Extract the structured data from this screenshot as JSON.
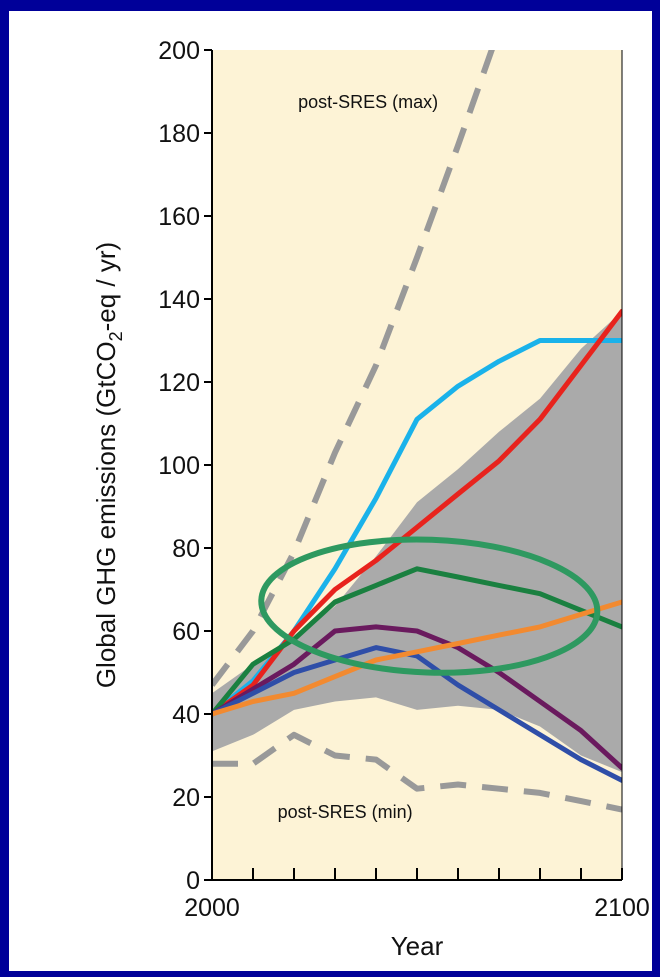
{
  "chart_data": {
    "type": "line",
    "xlabel": "Year",
    "ylabel": "Global GHG emissions (GtCO2-eq / yr)",
    "ylabel_parts": {
      "before": "Global GHG emissions (GtCO",
      "sub": "2",
      "after": "-eq / yr)"
    },
    "xlim": [
      2000,
      2100
    ],
    "ylim": [
      0,
      200
    ],
    "y_ticks": [
      0,
      20,
      40,
      60,
      80,
      100,
      120,
      140,
      160,
      180,
      200
    ],
    "y_tick_labels": [
      "0",
      "20",
      "40",
      "60",
      "80",
      "100",
      "120",
      "140",
      "160",
      "180",
      "200"
    ],
    "x_ticks": [
      2000,
      2010,
      2020,
      2030,
      2040,
      2050,
      2060,
      2070,
      2080,
      2090,
      2100
    ],
    "x_tick_labels": [
      {
        "x": 2000,
        "label": "2000"
      },
      {
        "x": 2100,
        "label": "2100"
      }
    ],
    "grid": false,
    "background_color": "#fdf3d6",
    "annotations": [
      {
        "text": "post-SRES (max)",
        "x": 2021,
        "y": 186
      },
      {
        "text": "post-SRES (min)",
        "x": 2016,
        "y": 15
      }
    ],
    "band": {
      "color": "#aaaaaa",
      "x": [
        2000,
        2010,
        2020,
        2030,
        2040,
        2050,
        2060,
        2070,
        2080,
        2090,
        2100
      ],
      "upper": [
        45,
        52,
        58,
        66,
        78,
        91,
        99,
        108,
        116,
        128,
        137
      ],
      "lower": [
        31,
        35,
        41,
        43,
        44,
        41,
        42,
        41,
        37,
        30,
        26
      ]
    },
    "reference_lines": [
      {
        "x": [
          2000,
          2010,
          2020,
          2030,
          2040,
          2050,
          2060,
          2070,
          2080,
          2090,
          2100
        ],
        "y": [
          47,
          60,
          79,
          103,
          124,
          150,
          177,
          205,
          234,
          262,
          290
        ],
        "color": "#999999",
        "style": "dashed"
      },
      {
        "x": [
          2000,
          2010,
          2020,
          2030,
          2040,
          2050,
          2060,
          2070,
          2080,
          2090,
          2100
        ],
        "y": [
          28,
          28,
          35,
          30,
          29,
          22,
          23,
          22,
          21,
          19,
          17
        ],
        "color": "#999999",
        "style": "dashed"
      }
    ],
    "series": [
      {
        "color": "#1ab2ea",
        "x": [
          2000,
          2010,
          2020,
          2030,
          2040,
          2050,
          2060,
          2070,
          2080,
          2090,
          2100
        ],
        "y": [
          40,
          48,
          60,
          75,
          92,
          111,
          119,
          125,
          130,
          130,
          130
        ]
      },
      {
        "color": "#e8231d",
        "x": [
          2000,
          2010,
          2020,
          2030,
          2040,
          2050,
          2060,
          2070,
          2080,
          2090,
          2100
        ],
        "y": [
          40,
          47,
          60,
          70,
          77,
          85,
          93,
          101,
          111,
          124,
          137
        ]
      },
      {
        "color": "#1a8040",
        "x": [
          2000,
          2010,
          2020,
          2030,
          2040,
          2050,
          2060,
          2070,
          2080,
          2090,
          2100
        ],
        "y": [
          40,
          52,
          58,
          67,
          71,
          75,
          73,
          71,
          69,
          65,
          61
        ]
      },
      {
        "color": "#6a1a5e",
        "x": [
          2000,
          2010,
          2020,
          2030,
          2040,
          2050,
          2060,
          2070,
          2080,
          2090,
          2100
        ],
        "y": [
          40,
          46,
          52,
          60,
          61,
          60,
          56,
          50,
          43,
          36,
          27
        ]
      },
      {
        "color": "#2f4ea8",
        "x": [
          2000,
          2010,
          2020,
          2030,
          2040,
          2050,
          2060,
          2070,
          2080,
          2090,
          2100
        ],
        "y": [
          40,
          45,
          50,
          53,
          56,
          54,
          47,
          41,
          35,
          29,
          24
        ]
      },
      {
        "color": "#f28a30",
        "x": [
          2000,
          2010,
          2020,
          2030,
          2040,
          2050,
          2060,
          2070,
          2080,
          2090,
          2100
        ],
        "y": [
          40,
          43,
          45,
          49,
          53,
          55,
          57,
          59,
          61,
          64,
          67
        ]
      }
    ],
    "highlight_ellipse": {
      "color": "#2e9960",
      "center_x": 2053,
      "center_y": 66,
      "rx_years": 41,
      "ry_units": 16
    }
  }
}
